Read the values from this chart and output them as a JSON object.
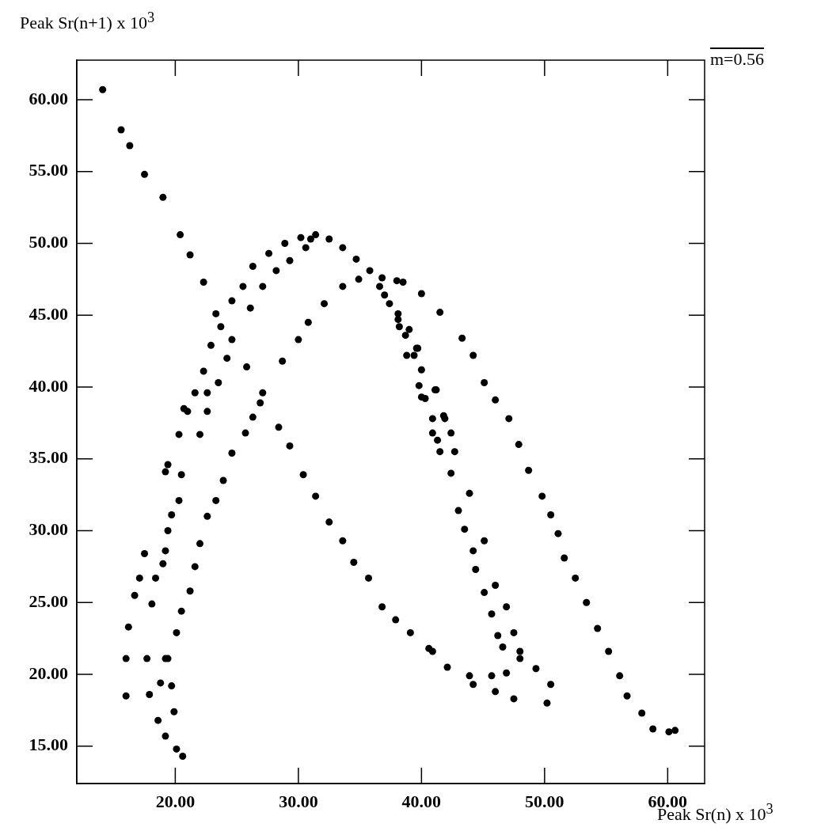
{
  "chart_data": {
    "type": "scatter",
    "xlabel": "Peak Sr(n) x 10$^{3}$",
    "ylabel": "Peak Sr(n+1) x 10$^{3}$",
    "annotations": [
      "m=0.56"
    ],
    "xlim": [
      12.0,
      63.0
    ],
    "ylim": [
      12.4,
      62.75
    ],
    "xticks": [
      {
        "value": 20,
        "label": "20.00"
      },
      {
        "value": 30,
        "label": "30.00"
      },
      {
        "value": 40,
        "label": "40.00"
      },
      {
        "value": 50,
        "label": "50.00"
      },
      {
        "value": 60,
        "label": "60.00"
      }
    ],
    "yticks": [
      {
        "value": 15,
        "label": "15.00"
      },
      {
        "value": 20,
        "label": "20.00"
      },
      {
        "value": 25,
        "label": "25.00"
      },
      {
        "value": 30,
        "label": "30.00"
      },
      {
        "value": 35,
        "label": "35.00"
      },
      {
        "value": 40,
        "label": "40.00"
      },
      {
        "value": 45,
        "label": "45.00"
      },
      {
        "value": 50,
        "label": "50.00"
      },
      {
        "value": 55,
        "label": "55.00"
      },
      {
        "value": 60,
        "label": "60.00"
      }
    ],
    "marker": "circle",
    "series": [
      {
        "color": "#000000",
        "x": [
          14.1,
          15.6,
          16.3,
          17.5,
          19.0,
          20.4,
          21.2,
          22.3,
          23.3,
          24.6,
          25.8,
          27.1,
          28.4,
          29.3,
          30.4,
          31.4,
          32.5,
          33.6,
          34.5,
          35.7,
          36.8,
          37.9,
          39.1,
          40.6,
          42.1,
          40.9,
          43.9,
          45.7,
          46.9,
          48.0,
          49.3,
          50.5,
          50.2,
          44.2,
          46.0,
          47.5,
          38.2,
          38.8,
          40.0,
          40.9,
          41.5,
          42.4,
          43.0,
          43.5,
          44.2,
          44.4,
          45.1,
          45.7,
          46.2,
          46.6,
          39.7,
          41.2,
          41.8,
          42.7,
          43.9,
          45.1,
          46.0,
          46.9,
          47.5,
          48.0,
          38.5,
          40.0,
          41.5,
          43.3,
          44.2,
          45.1,
          46.0,
          47.1,
          47.9,
          48.7,
          49.8,
          50.5,
          51.1,
          51.6,
          52.5,
          53.4,
          54.3,
          55.2,
          56.1,
          56.7,
          57.9,
          58.8,
          60.1,
          60.6,
          16.0,
          16.0,
          16.2,
          16.7,
          17.1,
          17.5,
          17.7,
          17.9,
          18.6,
          19.2,
          20.1,
          20.6,
          19.9,
          19.7,
          19.4,
          20.1,
          20.5,
          21.2,
          21.6,
          22.0,
          22.6,
          23.3,
          23.9,
          24.6,
          25.7,
          26.3,
          26.9,
          18.8,
          19.2,
          18.1,
          18.4,
          19.0,
          19.2,
          19.4,
          19.7,
          20.3,
          20.5,
          19.2,
          19.4,
          20.3,
          20.7,
          22.0,
          22.6,
          21.0,
          21.6,
          22.3,
          22.9,
          23.7,
          24.6,
          25.5,
          26.3,
          27.6,
          28.9,
          30.2,
          31.4,
          32.5,
          33.6,
          34.7,
          35.8,
          36.6,
          37.4,
          38.1,
          38.7,
          39.4,
          39.8,
          40.3,
          40.9,
          41.3,
          22.6,
          23.5,
          24.2,
          26.1,
          27.1,
          28.2,
          29.3,
          30.6,
          31.0,
          37.0,
          38.1,
          39.0,
          39.6,
          40.0,
          41.1,
          41.9,
          42.4,
          28.7,
          30.0,
          30.8,
          32.1,
          33.6,
          34.9,
          36.8,
          38.0
        ],
        "values": [
          60.7,
          57.9,
          56.8,
          54.8,
          53.2,
          50.6,
          49.2,
          47.3,
          45.1,
          43.3,
          41.4,
          39.6,
          37.2,
          35.9,
          33.9,
          32.4,
          30.6,
          29.3,
          27.8,
          26.7,
          24.7,
          23.8,
          22.9,
          21.8,
          20.5,
          21.6,
          19.9,
          19.9,
          20.1,
          21.1,
          20.4,
          19.3,
          18.0,
          19.3,
          18.8,
          18.3,
          44.2,
          42.2,
          39.3,
          36.8,
          35.5,
          34.0,
          31.4,
          30.1,
          28.6,
          27.3,
          25.7,
          24.2,
          22.7,
          21.9,
          42.7,
          39.8,
          38.0,
          35.5,
          32.6,
          29.3,
          26.2,
          24.7,
          22.9,
          21.6,
          47.3,
          46.5,
          45.2,
          43.4,
          42.2,
          40.3,
          39.1,
          37.8,
          36.0,
          34.2,
          32.4,
          31.1,
          29.8,
          28.1,
          26.7,
          25.0,
          23.2,
          21.6,
          19.9,
          18.5,
          17.3,
          16.2,
          16.0,
          16.1,
          18.5,
          21.1,
          23.3,
          25.5,
          26.7,
          28.4,
          21.1,
          18.6,
          16.8,
          15.7,
          14.8,
          14.3,
          17.4,
          19.2,
          21.1,
          22.9,
          24.4,
          25.8,
          27.5,
          29.1,
          31.0,
          32.1,
          33.5,
          35.4,
          36.8,
          37.9,
          38.9,
          19.4,
          21.1,
          24.9,
          26.7,
          27.7,
          28.6,
          30.0,
          31.1,
          32.1,
          33.9,
          34.1,
          34.6,
          36.7,
          38.5,
          36.7,
          38.3,
          38.3,
          39.6,
          41.1,
          42.9,
          44.2,
          46.0,
          47.0,
          48.4,
          49.3,
          50.0,
          50.4,
          50.6,
          50.3,
          49.7,
          48.9,
          48.1,
          47.0,
          45.8,
          44.7,
          43.6,
          42.2,
          40.1,
          39.2,
          37.8,
          36.3,
          39.6,
          40.3,
          42.0,
          45.5,
          47.0,
          48.1,
          48.8,
          49.7,
          50.3,
          46.4,
          45.1,
          44.0,
          42.7,
          41.2,
          39.8,
          37.8,
          36.8,
          41.8,
          43.3,
          44.5,
          45.8,
          47.0,
          47.5,
          47.6,
          47.4
        ]
      }
    ]
  }
}
